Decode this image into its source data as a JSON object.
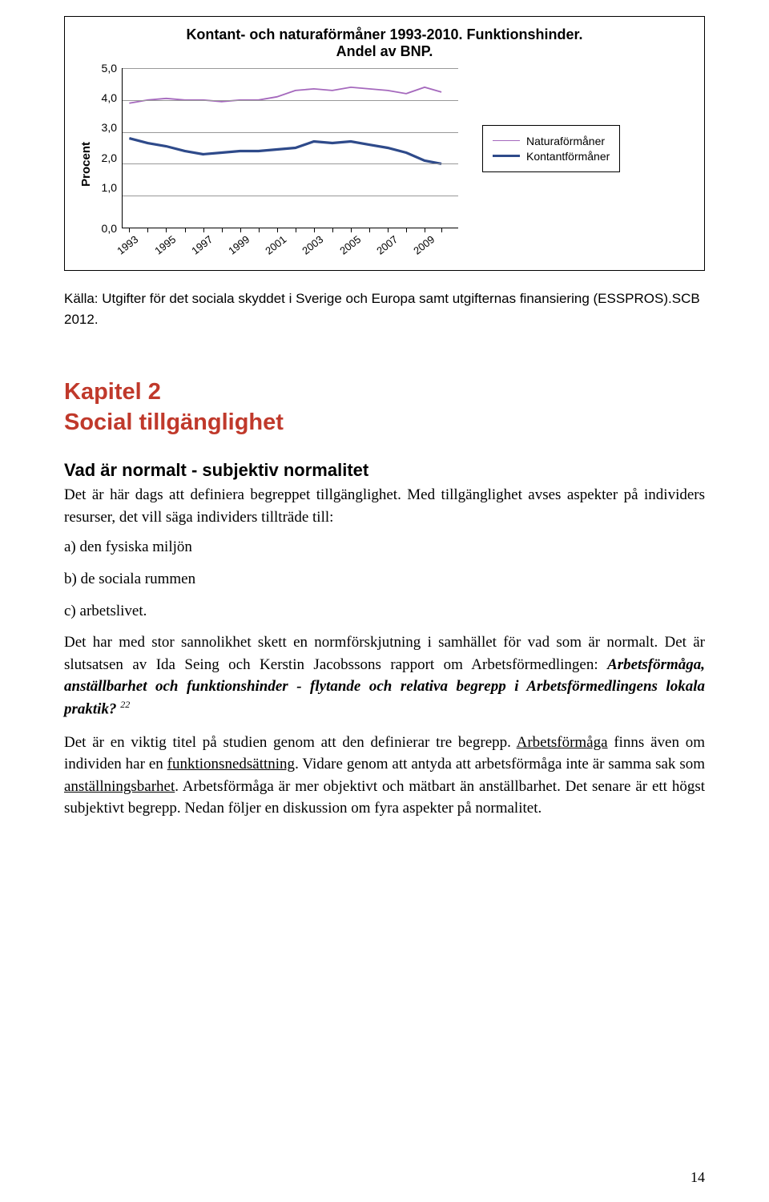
{
  "chart": {
    "type": "line",
    "title_line1": "Kontant- och naturaförmåner 1993-2010. Funktionshinder.",
    "title_line2": "Andel av BNP.",
    "y_axis_label": "Procent",
    "ylim": [
      0,
      5
    ],
    "y_ticks": [
      "5,0",
      "4,0",
      "3,0",
      "2,0",
      "1,0",
      "0,0"
    ],
    "x_labels": [
      "1993",
      "1995",
      "1997",
      "1999",
      "2001",
      "2003",
      "2005",
      "2007",
      "2009"
    ],
    "x_positions_pct": [
      2,
      13,
      24,
      35,
      46,
      57,
      68,
      79,
      90
    ],
    "grid_lines_pct": [
      0,
      20,
      40,
      60,
      80
    ],
    "series": {
      "natura": {
        "label": "Naturaförmåner",
        "color": "#a569bd",
        "width": 1.8,
        "values": [
          3.9,
          4.0,
          4.05,
          4.0,
          4.0,
          3.95,
          4.0,
          4.0,
          4.1,
          4.3,
          4.35,
          4.3,
          4.4,
          4.35,
          4.3,
          4.2,
          4.4,
          4.25
        ],
        "x_pct": [
          2,
          7.5,
          13,
          18.5,
          24,
          29.5,
          35,
          40.5,
          46,
          51.5,
          57,
          62.5,
          68,
          73.5,
          79,
          84.5,
          90,
          95
        ]
      },
      "kontant": {
        "label": "Kontantförmåner",
        "color": "#2e4a8a",
        "width": 3.2,
        "values": [
          2.8,
          2.65,
          2.55,
          2.4,
          2.3,
          2.35,
          2.4,
          2.4,
          2.45,
          2.5,
          2.7,
          2.65,
          2.7,
          2.6,
          2.5,
          2.35,
          2.1,
          2.0
        ],
        "x_pct": [
          2,
          7.5,
          13,
          18.5,
          24,
          29.5,
          35,
          40.5,
          46,
          51.5,
          57,
          62.5,
          68,
          73.5,
          79,
          84.5,
          90,
          95
        ]
      }
    },
    "background_color": "#ffffff",
    "grid_color": "#999999",
    "title_fontsize": 18,
    "label_fontsize": 14
  },
  "source_text": "Källa: Utgifter för det sociala skyddet i Sverige och Europa samt utgifternas finansiering (ESSPROS).SCB 2012.",
  "chapter": {
    "line1": "Kapitel 2",
    "line2": "Social tillgänglighet",
    "color": "#c0392b"
  },
  "section_heading": "Vad är normalt - subjektiv normalitet",
  "para1": "Det är här dags att definiera begreppet tillgänglighet. Med tillgänglighet avses aspekter på individers resurser, det vill säga individers tillträde till:",
  "list": {
    "a": "a) den fysiska miljön",
    "b": "b) de sociala rummen",
    "c": "c) arbetslivet."
  },
  "para2_pre": "Det har med stor sannolikhet skett en normförskjutning i samhället för vad som är normalt. Det är slutsatsen av Ida Seing och Kerstin Jacobssons rapport om Arbetsförmedlingen: ",
  "para2_bold": "Arbetsförmåga, anställbarhet och funktionshinder - flytande och relativa begrepp i Arbetsförmedlingens lokala praktik?",
  "para2_footnote": "22",
  "para3_a": "Det är en viktig titel på studien genom att den definierar tre begrepp. ",
  "para3_u1": "Arbetsförmåga",
  "para3_b": " finns även om individen har en ",
  "para3_u2": "funktionsnedsättning",
  "para3_c": ". Vidare genom att antyda att arbetsförmåga inte är samma sak som ",
  "para3_u3": "anställningsbarhet",
  "para3_d": ". Arbetsförmåga är mer objektivt och mätbart än anställbarhet. Det senare är ett högst subjektivt begrepp. Nedan följer en diskussion om fyra aspekter på normalitet.",
  "page_number": "14"
}
